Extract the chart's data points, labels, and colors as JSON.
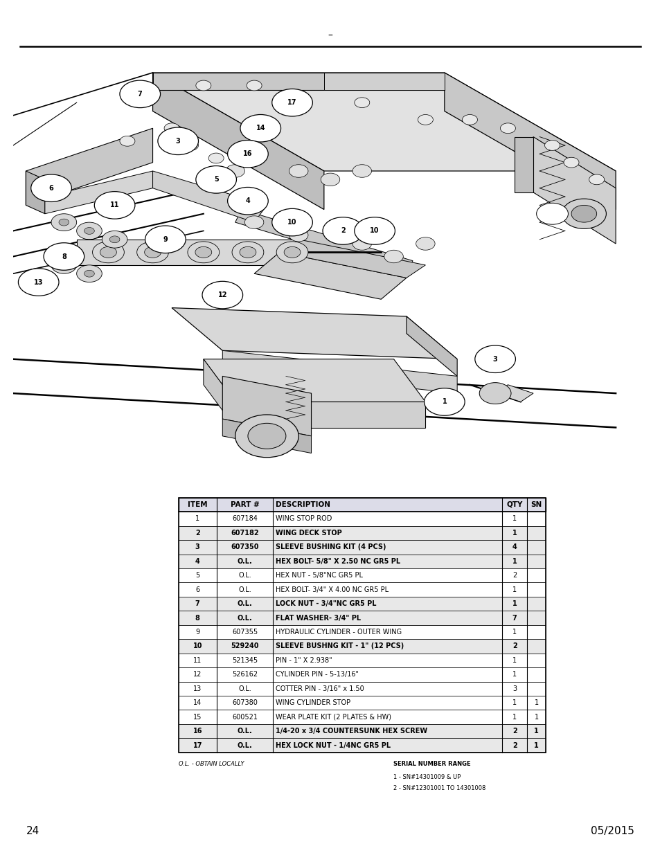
{
  "page_number": "24",
  "date": "05/2015",
  "table": {
    "headers": [
      "ITEM",
      "PART #",
      "DESCRIPTION",
      "QTY",
      "SN"
    ],
    "bold_items": [
      "2",
      "3",
      "4",
      "7",
      "8",
      "10",
      "16",
      "17"
    ],
    "rows": [
      [
        "1",
        "607184",
        "WING STOP ROD",
        "1",
        ""
      ],
      [
        "2",
        "607182",
        "WING DECK STOP",
        "1",
        ""
      ],
      [
        "3",
        "607350",
        "SLEEVE BUSHING KIT (4 PCS)",
        "4",
        ""
      ],
      [
        "4",
        "O.L.",
        "HEX BOLT- 5/8\" X 2.50 NC GR5 PL",
        "1",
        ""
      ],
      [
        "5",
        "O.L.",
        "HEX NUT - 5/8\"NC GR5 PL",
        "2",
        ""
      ],
      [
        "6",
        "O.L.",
        "HEX BOLT- 3/4\" X 4.00 NC GR5 PL",
        "1",
        ""
      ],
      [
        "7",
        "O.L.",
        "LOCK NUT - 3/4\"NC GR5 PL",
        "1",
        ""
      ],
      [
        "8",
        "O.L.",
        "FLAT WASHER- 3/4\" PL",
        "7",
        ""
      ],
      [
        "9",
        "607355",
        "HYDRAULIC CYLINDER - OUTER WING",
        "1",
        ""
      ],
      [
        "10",
        "529240",
        "SLEEVE BUSHNG KIT - 1\" (12 PCS)",
        "2",
        ""
      ],
      [
        "11",
        "521345",
        "PIN - 1\" X 2.938\"",
        "1",
        ""
      ],
      [
        "12",
        "526162",
        "CYLINDER PIN - 5-13/16\"",
        "1",
        ""
      ],
      [
        "13",
        "O.L.",
        "COTTER PIN - 3/16\" x 1.50",
        "3",
        ""
      ],
      [
        "14",
        "607380",
        "WING CYLINDER STOP",
        "1",
        "1"
      ],
      [
        "15",
        "600521",
        "WEAR PLATE KIT (2 PLATES & HW)",
        "1",
        "1"
      ],
      [
        "16",
        "O.L.",
        "1/4-20 x 3/4 COUNTERSUNK HEX SCREW",
        "2",
        "1"
      ],
      [
        "17",
        "O.L.",
        "HEX LOCK NUT - 1/4NC GR5 PL",
        "2",
        "1"
      ]
    ]
  },
  "footer_note1": "O.L. - OBTAIN LOCALLY",
  "footer_note2": "SERIAL NUMBER RANGE",
  "footer_note3": "1 - SN#14301009 & UP",
  "footer_note4": "2 - SN#12301001 TO 14301008"
}
